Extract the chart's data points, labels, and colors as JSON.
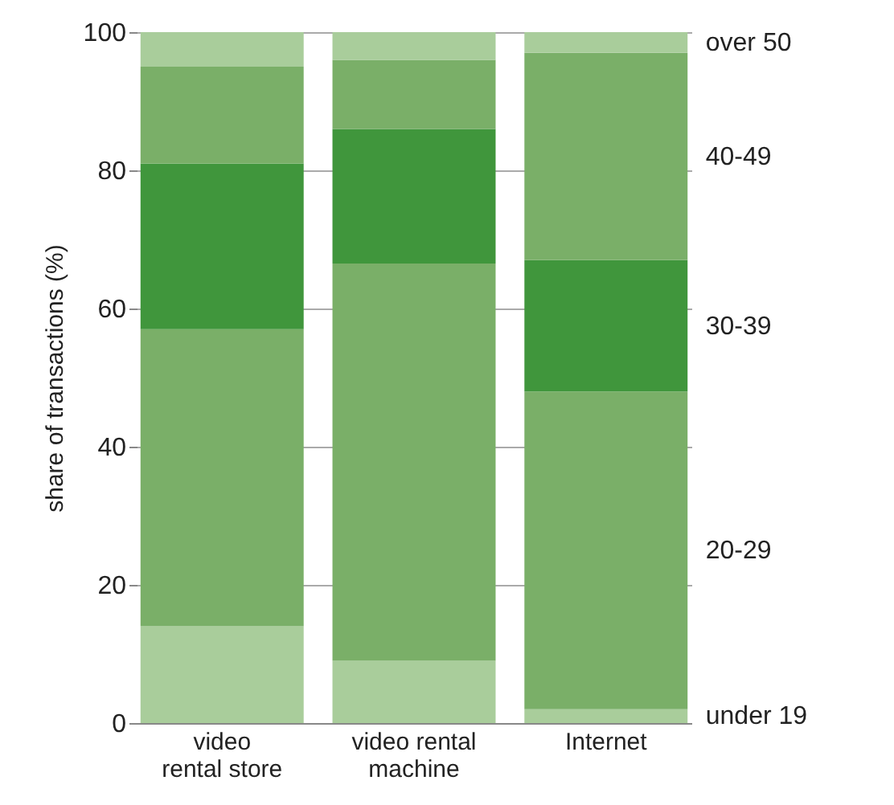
{
  "chart_data": {
    "type": "bar",
    "stacked": true,
    "ylabel": "share of transactions (%)",
    "categories": [
      "video rental store",
      "video rental machine",
      "Internet"
    ],
    "series": [
      {
        "name": "under 19",
        "color": "#a9cd9b",
        "values": [
          14,
          9,
          2
        ]
      },
      {
        "name": "20-29",
        "color": "#7aaf68",
        "values": [
          43,
          57.5,
          46
        ]
      },
      {
        "name": "30-39",
        "color": "#40963c",
        "values": [
          24,
          19.5,
          19
        ]
      },
      {
        "name": "40-49",
        "color": "#7aaf68",
        "values": [
          14,
          10,
          30
        ]
      },
      {
        "name": "over 50",
        "color": "#a9cd9b",
        "values": [
          5,
          4,
          3
        ]
      }
    ],
    "ylim": [
      0,
      100
    ],
    "yticks": [
      0,
      20,
      40,
      60,
      80,
      100
    ],
    "grid": "y"
  }
}
